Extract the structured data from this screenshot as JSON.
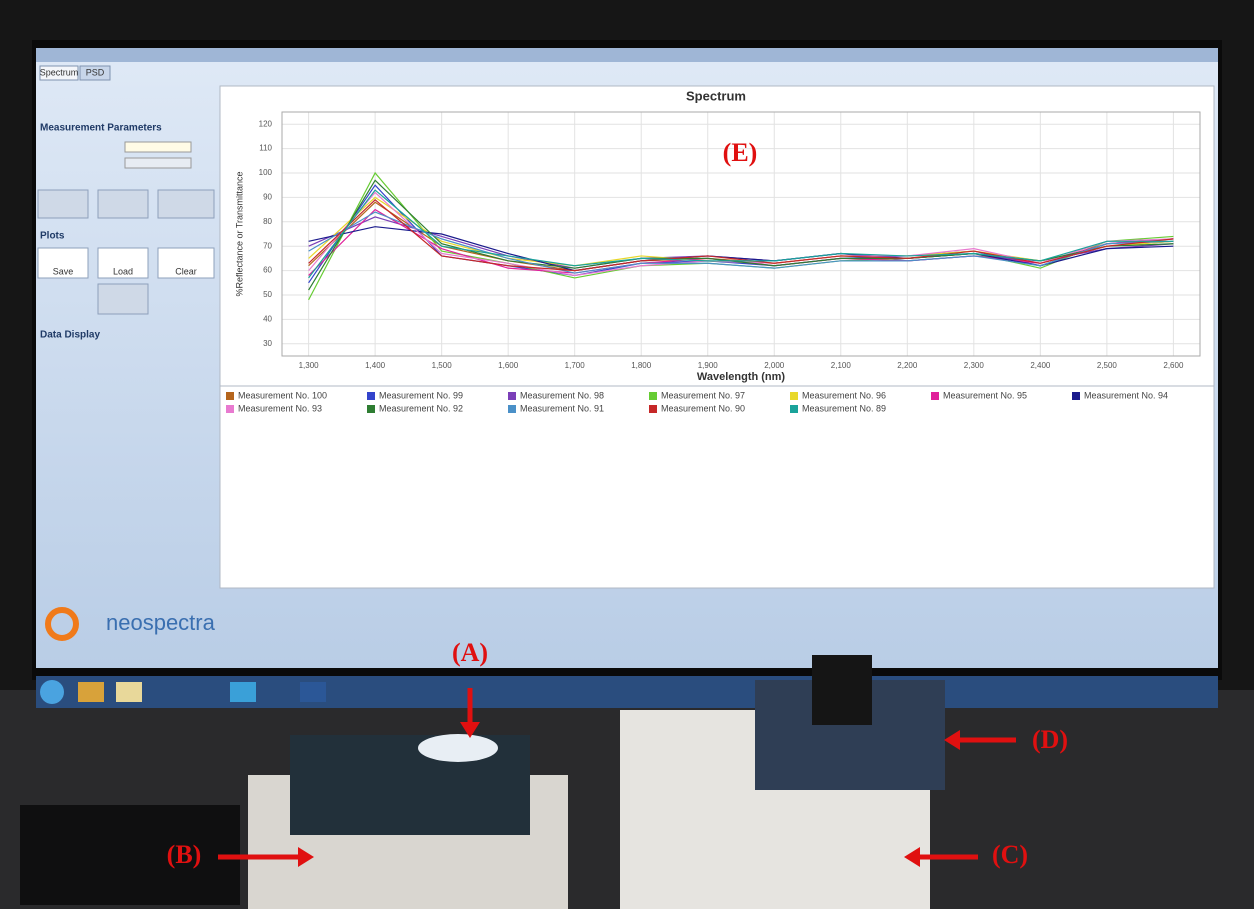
{
  "annotations": [
    "(A)",
    "(B)",
    "(C)",
    "(D)",
    "(E)"
  ],
  "panel": {
    "tabs": [
      "Spectrum",
      "PSD"
    ],
    "sections": [
      "Measurement Parameters",
      "Plots",
      "Data Display"
    ],
    "buttons": [
      "Save",
      "Load",
      "Clear"
    ],
    "logo": "neospectra"
  },
  "chart_data": {
    "type": "line",
    "title": "Spectrum",
    "x_label": "Wavelength (nm)",
    "y_label": "%Reflectance or Transmittance",
    "x": [
      1300,
      1400,
      1500,
      1600,
      1700,
      1800,
      1900,
      2000,
      2100,
      2200,
      2300,
      2400,
      2500,
      2600
    ],
    "xlim": [
      1260,
      2640
    ],
    "xticks": [
      {
        "value": 1300,
        "label": "1,300"
      },
      {
        "value": 1400,
        "label": "1,400"
      },
      {
        "value": 1500,
        "label": "1,500"
      },
      {
        "value": 1600,
        "label": "1,600"
      },
      {
        "value": 1700,
        "label": "1,700"
      },
      {
        "value": 1800,
        "label": "1,800"
      },
      {
        "value": 1900,
        "label": "1,900"
      },
      {
        "value": 2000,
        "label": "2,000"
      },
      {
        "value": 2100,
        "label": "2,100"
      },
      {
        "value": 2200,
        "label": "2,200"
      },
      {
        "value": 2300,
        "label": "2,300"
      },
      {
        "value": 2400,
        "label": "2,400"
      },
      {
        "value": 2500,
        "label": "2,500"
      },
      {
        "value": 2600,
        "label": "2,600"
      }
    ],
    "ylim": [
      25,
      125
    ],
    "yticks": [
      30,
      40,
      50,
      60,
      70,
      80,
      90,
      100,
      110,
      120
    ],
    "grid": true,
    "series": [
      {
        "name": "Measurement No. 100",
        "color": "#b5651d",
        "values": [
          62,
          88,
          70,
          64,
          60,
          64,
          65,
          63,
          66,
          65,
          67,
          63,
          70,
          72
        ]
      },
      {
        "name": "Measurement No. 99",
        "color": "#3344cc",
        "values": [
          55,
          95,
          66,
          62,
          58,
          63,
          64,
          62,
          65,
          66,
          68,
          62,
          71,
          73
        ]
      },
      {
        "name": "Measurement No. 98",
        "color": "#7b3fb8",
        "values": [
          70,
          82,
          74,
          66,
          61,
          65,
          66,
          64,
          67,
          64,
          66,
          64,
          69,
          71
        ]
      },
      {
        "name": "Measurement No. 97",
        "color": "#66cc33",
        "values": [
          48,
          100,
          68,
          63,
          57,
          62,
          63,
          61,
          64,
          65,
          67,
          61,
          72,
          74
        ]
      },
      {
        "name": "Measurement No. 96",
        "color": "#e8d82a",
        "values": [
          65,
          90,
          72,
          65,
          62,
          66,
          64,
          63,
          66,
          66,
          68,
          64,
          70,
          72
        ]
      },
      {
        "name": "Measurement No. 95",
        "color": "#e0209a",
        "values": [
          58,
          85,
          69,
          61,
          59,
          63,
          65,
          62,
          65,
          64,
          66,
          63,
          71,
          73
        ]
      },
      {
        "name": "Measurement No. 94",
        "color": "#1a1a8c",
        "values": [
          72,
          78,
          75,
          67,
          60,
          64,
          66,
          64,
          67,
          65,
          67,
          62,
          69,
          70
        ]
      },
      {
        "name": "Measurement No. 93",
        "color": "#e87ad0",
        "values": [
          60,
          92,
          67,
          63,
          58,
          62,
          64,
          63,
          66,
          66,
          69,
          63,
          72,
          73
        ]
      },
      {
        "name": "Measurement No. 92",
        "color": "#2e7d32",
        "values": [
          52,
          97,
          71,
          64,
          61,
          65,
          65,
          62,
          65,
          65,
          67,
          64,
          70,
          71
        ]
      },
      {
        "name": "Measurement No. 91",
        "color": "#4a90c8",
        "values": [
          68,
          84,
          73,
          65,
          59,
          63,
          63,
          61,
          64,
          64,
          66,
          62,
          71,
          72
        ]
      },
      {
        "name": "Measurement No. 90",
        "color": "#c62828",
        "values": [
          63,
          89,
          66,
          62,
          60,
          64,
          66,
          63,
          66,
          65,
          68,
          63,
          70,
          73
        ]
      },
      {
        "name": "Measurement No. 89",
        "color": "#1aa39a",
        "values": [
          57,
          93,
          70,
          66,
          62,
          65,
          64,
          64,
          67,
          66,
          67,
          64,
          72,
          72
        ]
      }
    ]
  }
}
